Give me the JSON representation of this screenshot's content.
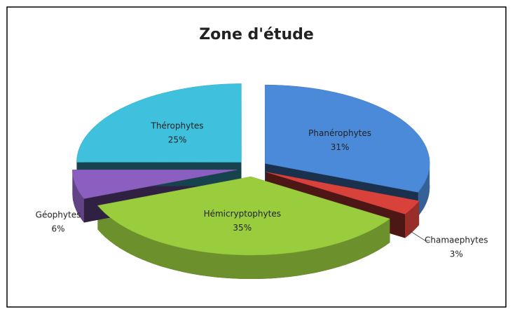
{
  "chart_data": {
    "type": "pie",
    "title": "Zone d'étude",
    "categories": [
      "Phanérophytes",
      "Chamaephytes",
      "Hémicryptophytes",
      "Géophytes",
      "Thérophytes"
    ],
    "values": [
      31,
      3,
      35,
      6,
      25
    ],
    "value_labels": [
      "31%",
      "3%",
      "35%",
      "6%",
      "25%"
    ],
    "colors": [
      "#4a8ad8",
      "#d9413b",
      "#9acd3e",
      "#8a5fc0",
      "#3fc0dc"
    ]
  }
}
